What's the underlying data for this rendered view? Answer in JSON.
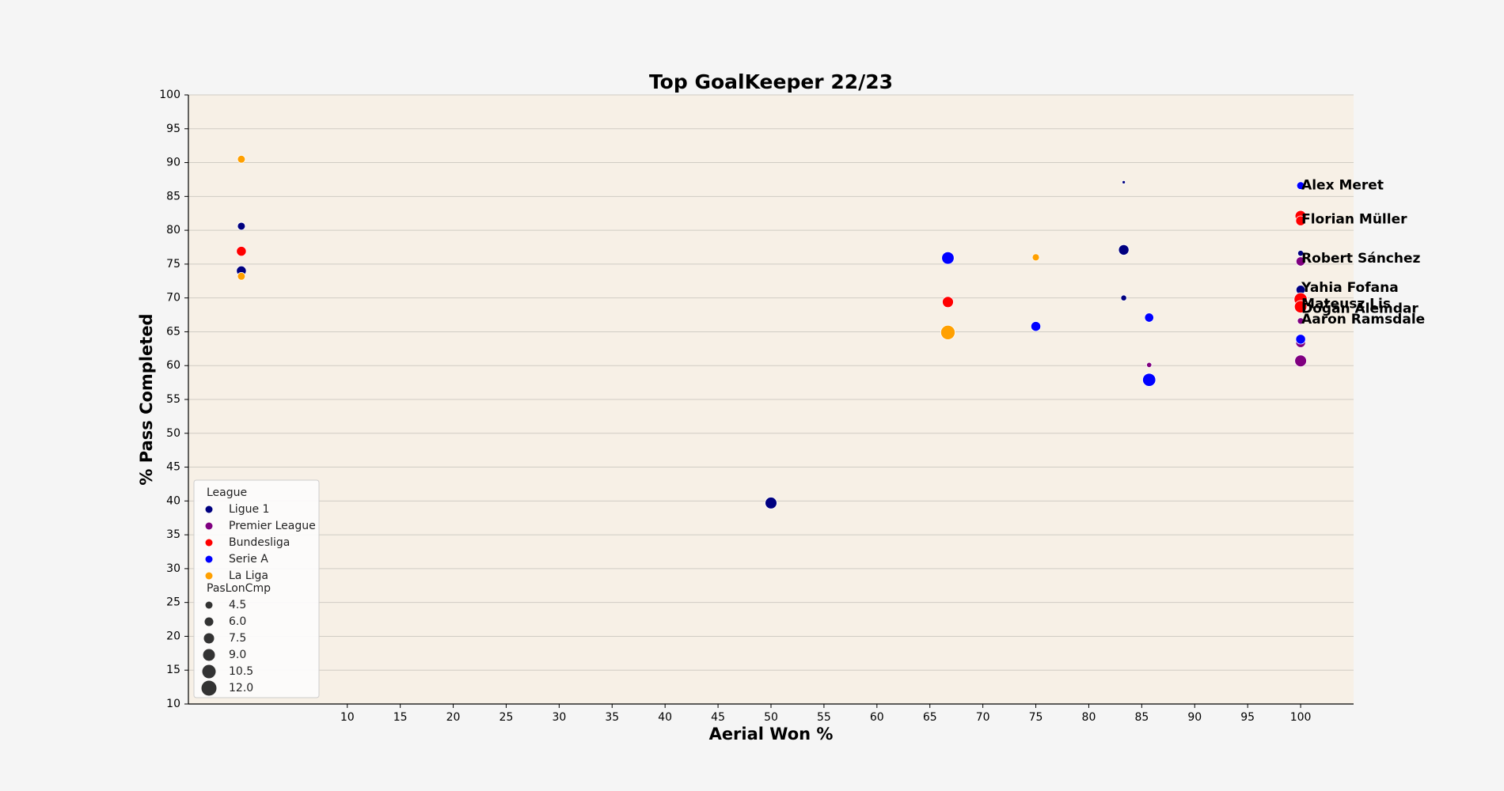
{
  "chart_data": {
    "type": "scatter",
    "title": "Top GoalKeeper 22/23",
    "xlabel": "Aerial Won %",
    "ylabel": "% Pass Completed",
    "xlim": [
      -5,
      105
    ],
    "ylim": [
      10,
      100
    ],
    "x_ticks": [
      10,
      15,
      20,
      25,
      30,
      35,
      40,
      45,
      50,
      55,
      60,
      65,
      70,
      75,
      80,
      85,
      90,
      95,
      100
    ],
    "y_ticks": [
      10,
      15,
      20,
      25,
      30,
      35,
      40,
      45,
      50,
      55,
      60,
      65,
      70,
      75,
      80,
      85,
      90,
      95,
      100
    ],
    "grid": "horizontal",
    "plot_background": "#f7f0e6",
    "legend": {
      "placement": "lower-left",
      "hue_title": "League",
      "size_title": "PasLonCmp",
      "size_values": [
        "4.5",
        "6.0",
        "7.5",
        "9.0",
        "10.5",
        "12.0"
      ]
    },
    "size_domain": [
      3,
      12
    ],
    "series": [
      {
        "name": "Ligue 1",
        "color": "#000080",
        "points": [
          {
            "x": 0,
            "y": 80.6,
            "s": 6.5
          },
          {
            "x": 0,
            "y": 74.0,
            "s": 8.0
          },
          {
            "x": 50,
            "y": 39.7,
            "s": 9.5
          },
          {
            "x": 83.3,
            "y": 87.1,
            "s": 3.0
          },
          {
            "x": 83.3,
            "y": 77.1,
            "s": 8.5
          },
          {
            "x": 83.3,
            "y": 70.0,
            "s": 5.0
          },
          {
            "x": 100,
            "y": 76.6,
            "s": 5.0
          },
          {
            "x": 100,
            "y": 71.2,
            "s": 7.5
          }
        ]
      },
      {
        "name": "Premier League",
        "color": "#800080",
        "points": [
          {
            "x": 85.7,
            "y": 60.1,
            "s": 4.5
          },
          {
            "x": 100,
            "y": 75.4,
            "s": 7.5
          },
          {
            "x": 100,
            "y": 66.6,
            "s": 5.5
          },
          {
            "x": 100,
            "y": 63.4,
            "s": 8.0
          },
          {
            "x": 100,
            "y": 60.7,
            "s": 9.5
          }
        ]
      },
      {
        "name": "Bundesliga",
        "color": "#ff0000",
        "points": [
          {
            "x": 0,
            "y": 76.9,
            "s": 8.0
          },
          {
            "x": 66.7,
            "y": 69.4,
            "s": 9.0
          },
          {
            "x": 100,
            "y": 82.1,
            "s": 9.0
          },
          {
            "x": 100,
            "y": 81.4,
            "s": 8.0
          },
          {
            "x": 100,
            "y": 69.8,
            "s": 10.5
          },
          {
            "x": 100,
            "y": 68.7,
            "s": 10.0
          }
        ]
      },
      {
        "name": "Serie A",
        "color": "#0000ff",
        "points": [
          {
            "x": 66.7,
            "y": 75.9,
            "s": 10.0
          },
          {
            "x": 75,
            "y": 65.8,
            "s": 8.0
          },
          {
            "x": 85.7,
            "y": 67.1,
            "s": 7.5
          },
          {
            "x": 85.7,
            "y": 57.9,
            "s": 10.5
          },
          {
            "x": 100,
            "y": 86.6,
            "s": 6.5
          },
          {
            "x": 100,
            "y": 63.9,
            "s": 8.0
          }
        ]
      },
      {
        "name": "La Liga",
        "color": "#ffa000",
        "points": [
          {
            "x": 0,
            "y": 90.5,
            "s": 6.5
          },
          {
            "x": 0,
            "y": 73.2,
            "s": 6.5
          },
          {
            "x": 66.7,
            "y": 64.9,
            "s": 11.5
          },
          {
            "x": 75,
            "y": 76.0,
            "s": 6.0
          }
        ]
      }
    ],
    "annotations": [
      {
        "text": "Alex Meret",
        "x": 100,
        "y": 86.6
      },
      {
        "text": "Florian Müller",
        "x": 100,
        "y": 81.6
      },
      {
        "text": "Robert Sánchez",
        "x": 100,
        "y": 75.8
      },
      {
        "text": "Yahia Fofana",
        "x": 100,
        "y": 71.5
      },
      {
        "text": "Mateusz Lis",
        "x": 100,
        "y": 69.1
      },
      {
        "text": "Doğan Alemdar",
        "x": 100,
        "y": 68.4
      },
      {
        "text": "Aaron Ramsdale",
        "x": 100,
        "y": 66.8
      }
    ]
  }
}
